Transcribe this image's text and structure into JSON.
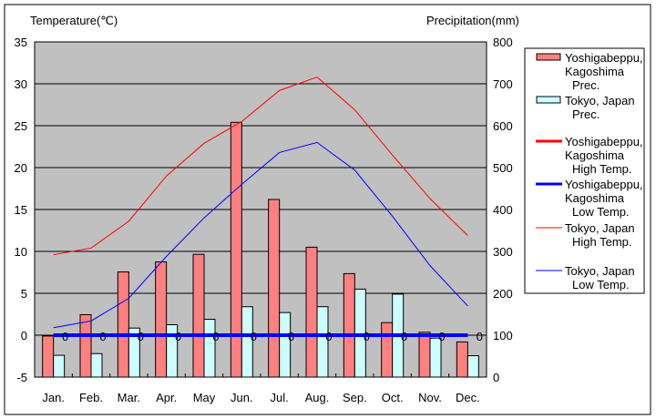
{
  "chart_data": {
    "type": "bar",
    "y_left_label": "Temperature(℃)",
    "y_right_label": "Precipitation(mm)",
    "categories": [
      "Jan.",
      "Feb.",
      "Mar.",
      "Apr.",
      "May",
      "Jun.",
      "Jul.",
      "Aug.",
      "Sep.",
      "Oct.",
      "Nov.",
      "Dec."
    ],
    "y_left_range": [
      -5,
      35
    ],
    "y_left_ticks": [
      "-5",
      "0",
      "5",
      "10",
      "15",
      "20",
      "25",
      "30",
      "35"
    ],
    "y_right_range": [
      0,
      800
    ],
    "y_right_ticks": [
      "0",
      "100",
      "200",
      "300",
      "400",
      "500",
      "600",
      "700",
      "800"
    ],
    "grid": true,
    "legend_position": "right",
    "bar_series": [
      {
        "name": "Yoshigabeppu, Kagoshima Prec.",
        "legend_lines": [
          "Yoshigabeppu,",
          "Kagoshima",
          "Prec."
        ],
        "color": "#ff8080",
        "values": [
          98,
          149,
          251,
          275,
          293,
          608,
          424,
          310,
          247,
          130,
          107,
          84
        ]
      },
      {
        "name": "Tokyo, Japan Prec.",
        "legend_lines": [
          "Tokyo, Japan",
          "Prec."
        ],
        "color": "#ccffff",
        "values": [
          52,
          56,
          117,
          125,
          138,
          168,
          154,
          168,
          210,
          198,
          93,
          51
        ]
      }
    ],
    "line_series": [
      {
        "name": "Yoshigabeppu, Kagoshima High Temp.",
        "legend_lines": [
          "Yoshigabeppu,",
          "Kagoshima",
          "High Temp."
        ],
        "color": "#ff0000",
        "thick": true,
        "values": [
          0,
          0,
          0,
          0,
          0,
          0,
          0,
          0,
          0,
          0,
          0,
          0
        ]
      },
      {
        "name": "Yoshigabeppu, Kagoshima Low Temp.",
        "legend_lines": [
          "Yoshigabeppu,",
          "Kagoshima",
          "Low Temp."
        ],
        "color": "#0000ff",
        "thick": true,
        "values": [
          0,
          0,
          0,
          0,
          0,
          0,
          0,
          0,
          0,
          0,
          0,
          0
        ]
      },
      {
        "name": "Tokyo, Japan High Temp.",
        "legend_lines": [
          "Tokyo, Japan",
          "High Temp."
        ],
        "color": "#ff0000",
        "thick": false,
        "values": [
          9.6,
          10.4,
          13.6,
          19.0,
          22.9,
          25.5,
          29.2,
          30.8,
          26.9,
          21.5,
          16.3,
          11.9
        ]
      },
      {
        "name": "Tokyo, Japan Low Temp.",
        "legend_lines": [
          "Tokyo, Japan",
          "Low Temp."
        ],
        "color": "#0000ff",
        "thick": false,
        "values": [
          0.9,
          1.7,
          4.4,
          9.4,
          14.0,
          18.0,
          21.8,
          23.0,
          19.7,
          14.2,
          8.3,
          3.5
        ]
      }
    ],
    "point_labels": [
      "0",
      "0",
      "0",
      "0",
      "0",
      "0",
      "0",
      "0",
      "0",
      "0",
      "0",
      "0"
    ]
  }
}
